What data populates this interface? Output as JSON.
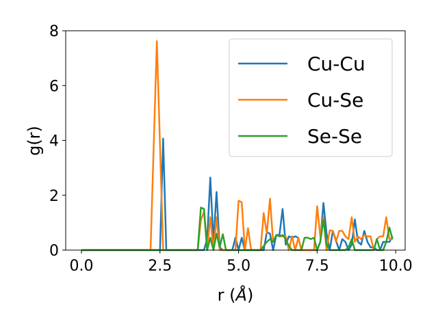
{
  "chart_data": {
    "type": "line",
    "xlabel_main": "r (",
    "xlabel_unit": "Å",
    "xlabel_close": ")",
    "ylabel": "g(r)",
    "xlim": [
      -0.5,
      10.3
    ],
    "ylim": [
      0,
      8
    ],
    "xticks": [
      0.0,
      2.5,
      5.0,
      7.5,
      10.0
    ],
    "xtick_labels": [
      "0.0",
      "2.5",
      "5.0",
      "7.5",
      "10.0"
    ],
    "yticks": [
      0,
      2,
      4,
      6,
      8
    ],
    "ytick_labels": [
      "0",
      "2",
      "4",
      "6",
      "8"
    ],
    "grid": false,
    "legend_position": "top-right",
    "series": [
      {
        "name": "Cu-Cu",
        "color": "#1f77b4",
        "x": [
          0.0,
          2.5,
          2.6,
          2.7,
          3.9,
          4.0,
          4.1,
          4.2,
          4.3,
          4.4,
          4.5,
          4.8,
          4.9,
          5.0,
          5.1,
          5.2,
          5.5,
          5.8,
          5.9,
          6.0,
          6.1,
          6.2,
          6.3,
          6.4,
          6.5,
          6.6,
          6.7,
          6.8,
          6.9,
          7.0,
          7.1,
          7.3,
          7.5,
          7.6,
          7.7,
          7.8,
          7.9,
          8.0,
          8.2,
          8.3,
          8.4,
          8.5,
          8.6,
          8.7,
          8.8,
          8.9,
          9.0,
          9.1,
          9.2,
          9.3,
          9.4,
          9.5,
          9.6,
          9.7,
          9.8,
          9.9
        ],
        "y": [
          0.0,
          0.0,
          4.07,
          0.0,
          0.0,
          0.4,
          2.65,
          0.3,
          2.12,
          0.1,
          0.0,
          0.0,
          0.45,
          0.0,
          0.45,
          0.0,
          0.0,
          0.0,
          0.65,
          0.6,
          0.0,
          0.55,
          0.55,
          1.5,
          0.2,
          0.5,
          0.45,
          0.5,
          0.45,
          0.0,
          0.0,
          0.0,
          0.0,
          0.3,
          1.72,
          0.6,
          0.0,
          0.7,
          0.0,
          0.4,
          0.3,
          0.0,
          0.2,
          1.12,
          0.3,
          0.2,
          0.7,
          0.3,
          0.1,
          0.1,
          0.0,
          0.0,
          0.3,
          0.3,
          0.3,
          0.5
        ]
      },
      {
        "name": "Cu-Se",
        "color": "#ff7f0e",
        "x": [
          0.0,
          2.2,
          2.4,
          2.6,
          3.7,
          3.8,
          3.9,
          4.0,
          4.1,
          4.2,
          4.3,
          4.4,
          4.5,
          4.9,
          5.0,
          5.1,
          5.2,
          5.3,
          5.4,
          5.6,
          5.7,
          5.8,
          5.9,
          6.0,
          6.1,
          6.2,
          6.3,
          6.5,
          6.6,
          6.7,
          6.8,
          6.9,
          7.0,
          7.2,
          7.4,
          7.5,
          7.6,
          7.7,
          7.8,
          7.9,
          8.0,
          8.1,
          8.2,
          8.3,
          8.4,
          8.5,
          8.6,
          8.7,
          8.8,
          8.9,
          9.0,
          9.1,
          9.2,
          9.3,
          9.4,
          9.5,
          9.6,
          9.7,
          9.8,
          9.9
        ],
        "y": [
          0.0,
          0.0,
          7.62,
          0.0,
          0.0,
          1.1,
          1.4,
          0.0,
          1.2,
          0.0,
          1.2,
          0.0,
          0.0,
          0.0,
          1.8,
          1.75,
          0.0,
          0.8,
          0.0,
          0.0,
          0.0,
          1.35,
          0.6,
          1.88,
          0.3,
          0.55,
          0.5,
          0.5,
          0.0,
          0.5,
          0.0,
          0.45,
          0.0,
          0.0,
          0.0,
          1.6,
          0.5,
          1.2,
          0.0,
          0.72,
          0.7,
          0.3,
          0.7,
          0.7,
          0.5,
          0.4,
          1.2,
          0.3,
          0.5,
          0.4,
          0.55,
          0.5,
          0.5,
          0.0,
          0.4,
          0.5,
          0.5,
          1.2,
          0.4,
          0.4
        ]
      },
      {
        "name": "Se-Se",
        "color": "#2ca02c",
        "x": [
          0.0,
          3.7,
          3.8,
          3.9,
          4.0,
          4.1,
          4.2,
          4.3,
          4.4,
          4.5,
          4.6,
          5.7,
          5.8,
          5.9,
          6.0,
          6.1,
          6.2,
          6.3,
          6.4,
          6.5,
          6.6,
          6.7,
          6.8,
          6.9,
          7.0,
          7.1,
          7.2,
          7.3,
          7.4,
          7.5,
          7.6,
          7.7,
          7.8,
          7.9,
          8.3,
          8.4,
          8.5,
          8.6,
          8.7,
          8.8,
          9.0,
          9.1,
          9.2,
          9.3,
          9.4,
          9.5,
          9.6,
          9.7,
          9.8,
          9.9
        ],
        "y": [
          0.0,
          0.0,
          1.55,
          1.5,
          0.0,
          0.45,
          0.0,
          0.6,
          0.1,
          0.58,
          0.0,
          0.0,
          0.15,
          0.3,
          0.4,
          0.3,
          0.55,
          0.5,
          0.55,
          0.4,
          0.15,
          0.0,
          0.0,
          0.0,
          0.0,
          0.45,
          0.45,
          0.4,
          0.45,
          0.0,
          0.3,
          1.1,
          0.2,
          0.0,
          0.0,
          0.0,
          0.1,
          0.4,
          0.0,
          0.0,
          0.0,
          0.0,
          0.0,
          0.0,
          0.4,
          0.0,
          0.0,
          0.3,
          0.82,
          0.4
        ]
      }
    ]
  }
}
